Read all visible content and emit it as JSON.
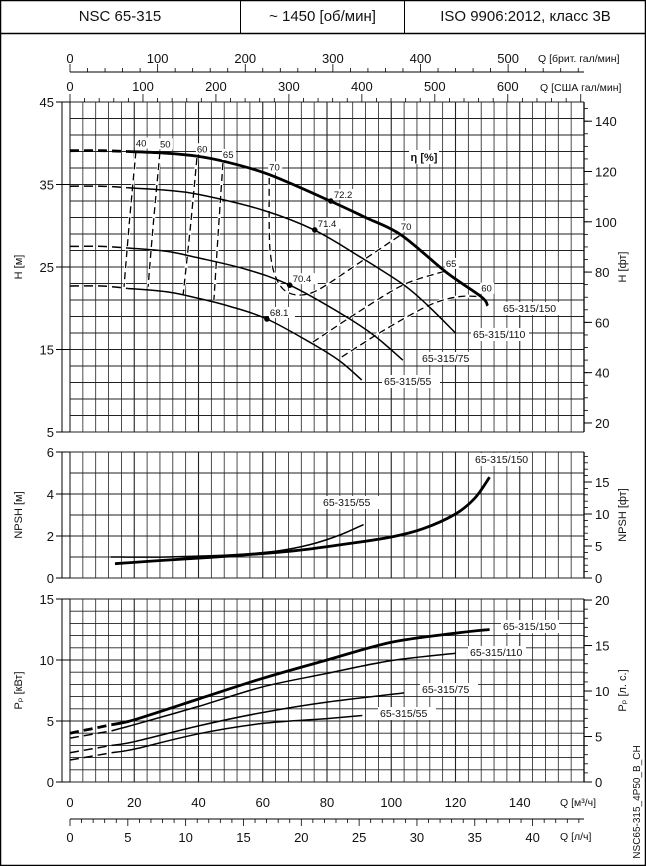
{
  "header": {
    "model": "NSC 65-315",
    "speed": "~ 1450 [об/мин]",
    "standard": "ISO 9906:2012, класс 3B"
  },
  "drawing_id": "NSC65-315_4P50_B_CH",
  "axes": {
    "q_m3h": {
      "label": "Q [м³/ч]",
      "ticks": [
        0,
        20,
        40,
        60,
        80,
        100,
        120,
        140
      ],
      "range": [
        0,
        160
      ]
    },
    "q_ls": {
      "label": "Q [л/ч]",
      "ticks": [
        0,
        5,
        10,
        15,
        20,
        25,
        30,
        35,
        40
      ]
    },
    "q_imp_gpm": {
      "label": "Q [брит. гал/мин]",
      "ticks": [
        0,
        100,
        200,
        300,
        400,
        500
      ]
    },
    "q_us_gpm": {
      "label": "Q [США гал/мин]",
      "ticks": [
        0,
        100,
        200,
        300,
        400,
        500,
        600
      ]
    }
  },
  "chart_data": [
    {
      "type": "line",
      "ylabel": "H [м]",
      "ylabel_right": "H [фт]",
      "ylim": [
        5,
        45
      ],
      "yticks": [
        5,
        15,
        25,
        35,
        45
      ],
      "yticks_right": [
        20,
        40,
        60,
        80,
        100,
        120,
        140
      ],
      "grid": true,
      "efficiency_label": "η [%]",
      "series": [
        {
          "name": "65-315/150",
          "bold": true,
          "lead_in": [
            [
              0,
              39.1
            ],
            [
              10,
              39.1
            ],
            [
              18,
              39.0
            ]
          ],
          "points": [
            [
              18,
              39.0
            ],
            [
              30,
              38.8
            ],
            [
              40,
              38.4
            ],
            [
              49,
              37.7
            ],
            [
              62,
              36.2
            ],
            [
              81,
              33.0
            ],
            [
              92,
              31.0
            ],
            [
              103,
              28.9
            ],
            [
              117,
              24.4
            ],
            [
              128,
              21.4
            ],
            [
              130,
              20.3
            ]
          ]
        },
        {
          "name": "65-315/110",
          "lead_in": [
            [
              0,
              34.8
            ],
            [
              10,
              34.8
            ],
            [
              18,
              34.6
            ]
          ],
          "points": [
            [
              18,
              34.6
            ],
            [
              30,
              34.3
            ],
            [
              40,
              33.8
            ],
            [
              60,
              31.9
            ],
            [
              76,
              29.5
            ],
            [
              90,
              26.3
            ],
            [
              104,
              22.8
            ],
            [
              112,
              20.1
            ],
            [
              120,
              17.0
            ]
          ]
        },
        {
          "name": "65-315/75",
          "lead_in": [
            [
              0,
              27.5
            ],
            [
              10,
              27.5
            ],
            [
              18,
              27.3
            ]
          ],
          "points": [
            [
              18,
              27.3
            ],
            [
              30,
              26.9
            ],
            [
              40,
              26.1
            ],
            [
              55,
              24.7
            ],
            [
              68.4,
              22.8
            ],
            [
              85,
              19.2
            ],
            [
              95,
              16.6
            ],
            [
              103.6,
              13.7
            ]
          ]
        },
        {
          "name": "65-315/55",
          "lead_in": [
            [
              0,
              22.7
            ],
            [
              10,
              22.7
            ],
            [
              18,
              22.4
            ]
          ],
          "points": [
            [
              18,
              22.4
            ],
            [
              30,
              22.0
            ],
            [
              40,
              21.2
            ],
            [
              50,
              20.2
            ],
            [
              61.3,
              18.7
            ],
            [
              75,
              15.8
            ],
            [
              84,
              13.6
            ],
            [
              90.8,
              11.3
            ]
          ]
        }
      ],
      "efficiency_curves": [
        {
          "value": "40",
          "points": [
            [
              20.5,
              39.0
            ],
            [
              18.5,
              30.5
            ],
            [
              16.8,
              22.6
            ]
          ]
        },
        {
          "value": "50",
          "points": [
            [
              28,
              38.9
            ],
            [
              26,
              30.5
            ],
            [
              24.3,
              22.6
            ]
          ]
        },
        {
          "value": "60",
          "points": [
            [
              39.5,
              38.2
            ],
            [
              37.5,
              30
            ],
            [
              35.2,
              21.6
            ]
          ]
        },
        {
          "value": "65",
          "points": [
            [
              47.6,
              37.6
            ],
            [
              46.2,
              29.5
            ],
            [
              44.8,
              21.0
            ]
          ]
        },
        {
          "value": "70",
          "points": [
            [
              62,
              35.8
            ],
            [
              62,
              30
            ],
            [
              62.4,
              26.5
            ],
            [
              64,
              23.8
            ],
            [
              67,
              22.1
            ],
            [
              72,
              21.6
            ],
            [
              78,
              22.4
            ],
            [
              90,
              25.5
            ],
            [
              103,
              28.9
            ]
          ]
        },
        {
          "value": "65",
          "points": [
            [
              75.6,
              15.9
            ],
            [
              90,
              19.6
            ],
            [
              103.6,
              22.8
            ],
            [
              115,
              24.3
            ],
            [
              117,
              24.4
            ]
          ]
        },
        {
          "value": "60",
          "points": [
            [
              84.6,
              14.1
            ],
            [
              98,
              17.4
            ],
            [
              112,
              20.4
            ],
            [
              121,
              21.4
            ],
            [
              128,
              21.4
            ]
          ]
        }
      ],
      "efficiency_labels": [
        {
          "text": "40",
          "q": 20.5,
          "h": 39.0
        },
        {
          "text": "50",
          "q": 28,
          "h": 38.9
        },
        {
          "text": "60",
          "q": 39.5,
          "h": 38.3
        },
        {
          "text": "65",
          "q": 47.6,
          "h": 37.6
        },
        {
          "text": "70",
          "q": 62,
          "h": 36.1
        },
        {
          "text": "72.2",
          "q": 81.2,
          "h": 33.0,
          "dot": true
        },
        {
          "text": "71.4",
          "q": 76.2,
          "h": 29.5,
          "dot": true
        },
        {
          "text": "70.4",
          "q": 68.4,
          "h": 22.8,
          "dot": true
        },
        {
          "text": "68.1",
          "q": 61.3,
          "h": 18.7,
          "dot": true
        },
        {
          "text": "70",
          "q": 103,
          "h": 28.9
        },
        {
          "text": "65",
          "q": 117,
          "h": 24.4
        },
        {
          "text": "60",
          "q": 128,
          "h": 21.4
        }
      ]
    },
    {
      "type": "line",
      "ylabel": "NPSH [м]",
      "ylabel_right": "NPSH [фт]",
      "ylim": [
        0,
        6
      ],
      "yticks": [
        0,
        2,
        4,
        6
      ],
      "yticks_right": [
        0,
        5,
        10,
        15
      ],
      "grid": true,
      "series": [
        {
          "name": "65-315/150",
          "bold": true,
          "points": [
            [
              14,
              0.68
            ],
            [
              30,
              0.85
            ],
            [
              50,
              1.05
            ],
            [
              70,
              1.3
            ],
            [
              85,
              1.6
            ],
            [
              100,
              1.95
            ],
            [
              110,
              2.35
            ],
            [
              120,
              3.05
            ],
            [
              126,
              3.8
            ],
            [
              130.6,
              4.8
            ]
          ]
        },
        {
          "name": "65-315/55",
          "points": [
            [
              12.7,
              1.0
            ],
            [
              30,
              1.0
            ],
            [
              50,
              1.1
            ],
            [
              65,
              1.3
            ],
            [
              75,
              1.6
            ],
            [
              84,
              2.05
            ],
            [
              91.4,
              2.55
            ]
          ]
        }
      ]
    },
    {
      "type": "line",
      "ylabel": "Pₚ [кВт]",
      "ylabel_right": "Pₚ [л. с.]",
      "ylim": [
        0,
        15
      ],
      "yticks": [
        0,
        5,
        10,
        15
      ],
      "yticks_right": [
        0,
        5,
        10,
        15,
        20
      ],
      "grid": true,
      "series": [
        {
          "name": "65-315/150",
          "bold": true,
          "lead_in": [
            [
              0,
              4.0
            ],
            [
              13,
              4.7
            ]
          ],
          "points": [
            [
              13,
              4.7
            ],
            [
              20,
              5.1
            ],
            [
              40,
              6.8
            ],
            [
              60,
              8.5
            ],
            [
              80,
              10.0
            ],
            [
              100,
              11.45
            ],
            [
              120,
              12.2
            ],
            [
              130.6,
              12.5
            ]
          ]
        },
        {
          "name": "65-315/110",
          "lead_in": [
            [
              0,
              3.6
            ],
            [
              13,
              4.2
            ]
          ],
          "points": [
            [
              13,
              4.2
            ],
            [
              20,
              4.7
            ],
            [
              40,
              6.2
            ],
            [
              60,
              7.8
            ],
            [
              80,
              8.9
            ],
            [
              100,
              9.95
            ],
            [
              120,
              10.55
            ]
          ]
        },
        {
          "name": "65-315/75",
          "lead_in": [
            [
              0,
              2.4
            ],
            [
              13,
              3.0
            ]
          ],
          "points": [
            [
              13,
              3.0
            ],
            [
              20,
              3.3
            ],
            [
              40,
              4.6
            ],
            [
              60,
              5.7
            ],
            [
              80,
              6.55
            ],
            [
              104,
              7.3
            ]
          ]
        },
        {
          "name": "65-315/55",
          "lead_in": [
            [
              0,
              1.8
            ],
            [
              13,
              2.4
            ]
          ],
          "points": [
            [
              13,
              2.4
            ],
            [
              20,
              2.7
            ],
            [
              40,
              3.95
            ],
            [
              60,
              4.8
            ],
            [
              80,
              5.2
            ],
            [
              91,
              5.45
            ]
          ]
        }
      ]
    }
  ]
}
